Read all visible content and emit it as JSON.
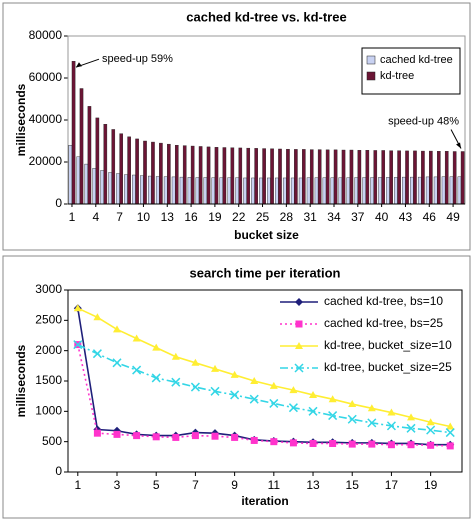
{
  "chart_data": [
    {
      "type": "bar",
      "title": "cached kd-tree vs. kd-tree",
      "x_label": "bucket size",
      "y_label": "milliseconds",
      "categories": [
        1,
        null,
        null,
        4,
        null,
        null,
        7,
        null,
        null,
        10,
        null,
        null,
        13,
        null,
        null,
        16,
        null,
        null,
        19,
        null,
        null,
        22,
        null,
        null,
        25,
        null,
        null,
        28,
        null,
        null,
        31,
        null,
        null,
        34,
        null,
        null,
        37,
        null,
        null,
        40,
        null,
        null,
        43,
        null,
        null,
        46,
        null,
        null,
        49,
        null
      ],
      "series": [
        {
          "name": "cached kd-tree",
          "color": "#c9d2f2",
          "values": [
            28000,
            22500,
            19000,
            17000,
            16000,
            15000,
            14500,
            14000,
            13800,
            13500,
            13300,
            13100,
            13000,
            12900,
            12800,
            12700,
            12600,
            12600,
            12500,
            12500,
            12500,
            12500,
            12400,
            12400,
            12400,
            12400,
            12400,
            12400,
            12400,
            12400,
            12500,
            12500,
            12500,
            12500,
            12500,
            12500,
            12600,
            12600,
            12600,
            12700,
            12700,
            12700,
            12800,
            12800,
            12800,
            12900,
            12900,
            13000,
            13000,
            13000
          ]
        },
        {
          "name": "kd-tree",
          "color": "#6b1535",
          "values": [
            68000,
            55000,
            46500,
            41000,
            38000,
            35500,
            33500,
            32000,
            31000,
            30000,
            29500,
            29000,
            28500,
            28000,
            27800,
            27600,
            27400,
            27200,
            27000,
            26900,
            26800,
            26700,
            26600,
            26500,
            26400,
            26300,
            26200,
            26100,
            26000,
            26000,
            25900,
            25900,
            25800,
            25800,
            25700,
            25700,
            25600,
            25600,
            25500,
            25500,
            25400,
            25400,
            25300,
            25300,
            25200,
            25200,
            25100,
            25100,
            25000,
            25000
          ]
        }
      ],
      "ylim": [
        0,
        80000
      ],
      "yticks": [
        0,
        20000,
        40000,
        60000,
        80000
      ],
      "grid": false,
      "legend": "upper right",
      "annotations": [
        "speed-up 59%",
        "speed-up 48%"
      ]
    },
    {
      "type": "line",
      "title": "search time per iteration",
      "x_label": "iteration",
      "y_label": "milliseconds",
      "x": [
        1,
        2,
        3,
        4,
        5,
        6,
        7,
        8,
        9,
        10,
        11,
        12,
        13,
        14,
        15,
        16,
        17,
        18,
        19,
        20
      ],
      "series": [
        {
          "name": "cached kd-tree, bs=10",
          "color": "#1f1f7a",
          "marker": "diamond",
          "dash": "solid",
          "values": [
            2700,
            700,
            680,
            620,
            600,
            600,
            650,
            640,
            600,
            530,
            510,
            500,
            490,
            490,
            480,
            480,
            470,
            470,
            450,
            450
          ]
        },
        {
          "name": "cached kd-tree, bs=25",
          "color": "#ff33cc",
          "marker": "square",
          "dash": "dotted",
          "values": [
            2100,
            640,
            620,
            600,
            580,
            570,
            600,
            590,
            570,
            520,
            500,
            480,
            470,
            470,
            460,
            460,
            450,
            450,
            440,
            430
          ]
        },
        {
          "name": "kd-tree, bucket_size=10",
          "color": "#ffee33",
          "marker": "triangle",
          "dash": "solid",
          "values": [
            2700,
            2550,
            2350,
            2200,
            2050,
            1900,
            1800,
            1700,
            1600,
            1500,
            1420,
            1350,
            1270,
            1200,
            1120,
            1050,
            980,
            900,
            820,
            750
          ]
        },
        {
          "name": "kd-tree, bucket_size=25",
          "color": "#33d6e6",
          "marker": "x",
          "dash": "dashdot",
          "values": [
            2100,
            1950,
            1800,
            1680,
            1550,
            1480,
            1400,
            1330,
            1270,
            1200,
            1130,
            1060,
            1000,
            930,
            870,
            810,
            760,
            720,
            690,
            650
          ]
        }
      ],
      "xlim": [
        0.5,
        20.6
      ],
      "xticks": [
        1,
        3,
        5,
        7,
        9,
        11,
        13,
        15,
        17,
        19
      ],
      "ylim": [
        0,
        3000
      ],
      "yticks": [
        0,
        500,
        1000,
        1500,
        2000,
        2500,
        3000
      ],
      "grid": false,
      "legend": "upper right"
    }
  ]
}
